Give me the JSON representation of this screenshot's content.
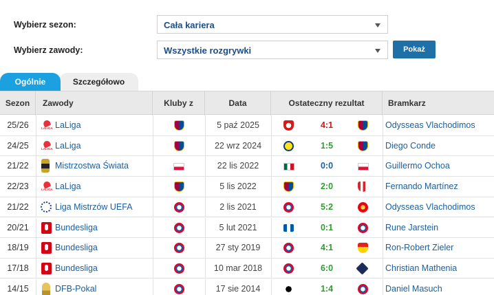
{
  "filters": {
    "season_label": "Wybierz sezon:",
    "season_value": "Cała kariera",
    "competition_label": "Wybierz zawody:",
    "competition_value": "Wszystkie rozgrywki",
    "show_button": "Pokaż"
  },
  "tabs": [
    {
      "label": "Ogólnie",
      "active": true
    },
    {
      "label": "Szczegółowo",
      "active": false
    }
  ],
  "columns": [
    "Sezon",
    "Zawody",
    "Kluby z",
    "Data",
    "Ostateczny rezultat",
    "Bramkarz"
  ],
  "rows": [
    {
      "season": "25/26",
      "competition": "LaLiga",
      "comp_icon": "laliga-logo",
      "club": "crest-barca",
      "date": "5 paź 2025",
      "home": "crest-sevilla",
      "score": "4:1",
      "outcome": "loss",
      "away": "crest-barca",
      "goalkeeper": "Odysseas Vlachodimos"
    },
    {
      "season": "24/25",
      "competition": "LaLiga",
      "comp_icon": "laliga-logo",
      "club": "crest-barca",
      "date": "22 wrz 2024",
      "home": "crest-villarreal",
      "score": "1:5",
      "outcome": "win",
      "away": "crest-barca",
      "goalkeeper": "Diego Conde"
    },
    {
      "season": "21/22",
      "competition": "Mistrzostwa Świata",
      "comp_icon": "wc-logo",
      "club": "flag-pl",
      "date": "22 lis 2022",
      "home": "flag-mx",
      "score": "0:0",
      "outcome": "draw",
      "away": "flag-pl",
      "goalkeeper": "Guillermo Ochoa"
    },
    {
      "season": "22/23",
      "competition": "LaLiga",
      "comp_icon": "laliga-logo",
      "club": "crest-barca",
      "date": "5 lis 2022",
      "home": "crest-barca",
      "score": "2:0",
      "outcome": "win",
      "away": "crest-almeria",
      "goalkeeper": "Fernando Martínez"
    },
    {
      "season": "21/22",
      "competition": "Liga Mistrzów UEFA",
      "comp_icon": "ucl-logo",
      "club": "crest-bayern",
      "date": "2 lis 2021",
      "home": "crest-bayern",
      "score": "5:2",
      "outcome": "win",
      "away": "crest-benfica",
      "goalkeeper": "Odysseas Vlachodimos"
    },
    {
      "season": "20/21",
      "competition": "Bundesliga",
      "comp_icon": "bl-logo",
      "club": "crest-bayern",
      "date": "5 lut 2021",
      "home": "crest-hertha",
      "score": "0:1",
      "outcome": "win",
      "away": "crest-bayern",
      "goalkeeper": "Rune Jarstein"
    },
    {
      "season": "18/19",
      "competition": "Bundesliga",
      "comp_icon": "bl-logo",
      "club": "crest-bayern",
      "date": "27 sty 2019",
      "home": "crest-bayern",
      "score": "4:1",
      "outcome": "win",
      "away": "crest-stuttgart",
      "goalkeeper": "Ron-Robert Zieler"
    },
    {
      "season": "17/18",
      "competition": "Bundesliga",
      "comp_icon": "bl-logo",
      "club": "crest-bayern",
      "date": "10 mar 2018",
      "home": "crest-bayern",
      "score": "6:0",
      "outcome": "win",
      "away": "crest-hamburg",
      "goalkeeper": "Christian Mathenia"
    },
    {
      "season": "14/15",
      "competition": "DFB-Pokal",
      "comp_icon": "dfb-logo",
      "club": "crest-bayern",
      "date": "17 sie 2014",
      "home": "crest-frankfurt",
      "score": "1:4",
      "outcome": "win",
      "away": "crest-bayern",
      "goalkeeper": "Daniel Masuch"
    }
  ],
  "colors": {
    "accent": "#1ba0e0",
    "button": "#1f6fa8",
    "link": "#1a5fa0",
    "win": "#2e9e2e",
    "loss": "#d01818"
  }
}
